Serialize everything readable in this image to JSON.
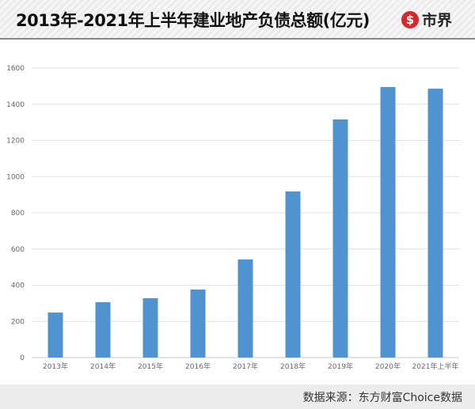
{
  "header": {
    "title": "2013年-2021年上半年建业地产负债总额(亿元)",
    "logo_text": "市界",
    "logo_icon": "dollar-circle-icon",
    "brand_color": "#d8262b"
  },
  "footer": {
    "source": "数据来源：东方财富Choice数据"
  },
  "chart_data": {
    "type": "bar",
    "title": "2013年-2021年上半年建业地产负债总额(亿元)",
    "categories": [
      "2013年",
      "2014年",
      "2015年",
      "2016年",
      "2017年",
      "2018年",
      "2019年",
      "2020年",
      "2021年上半年"
    ],
    "values": [
      249,
      306,
      328,
      376,
      542,
      918,
      1316,
      1495,
      1486
    ],
    "ylim": [
      0,
      1600
    ],
    "yticks": [
      "0",
      "200",
      "400",
      "600",
      "800",
      "1000",
      "1200",
      "1400",
      "1600"
    ],
    "grid": true,
    "bar_color": "#4f94d1"
  }
}
